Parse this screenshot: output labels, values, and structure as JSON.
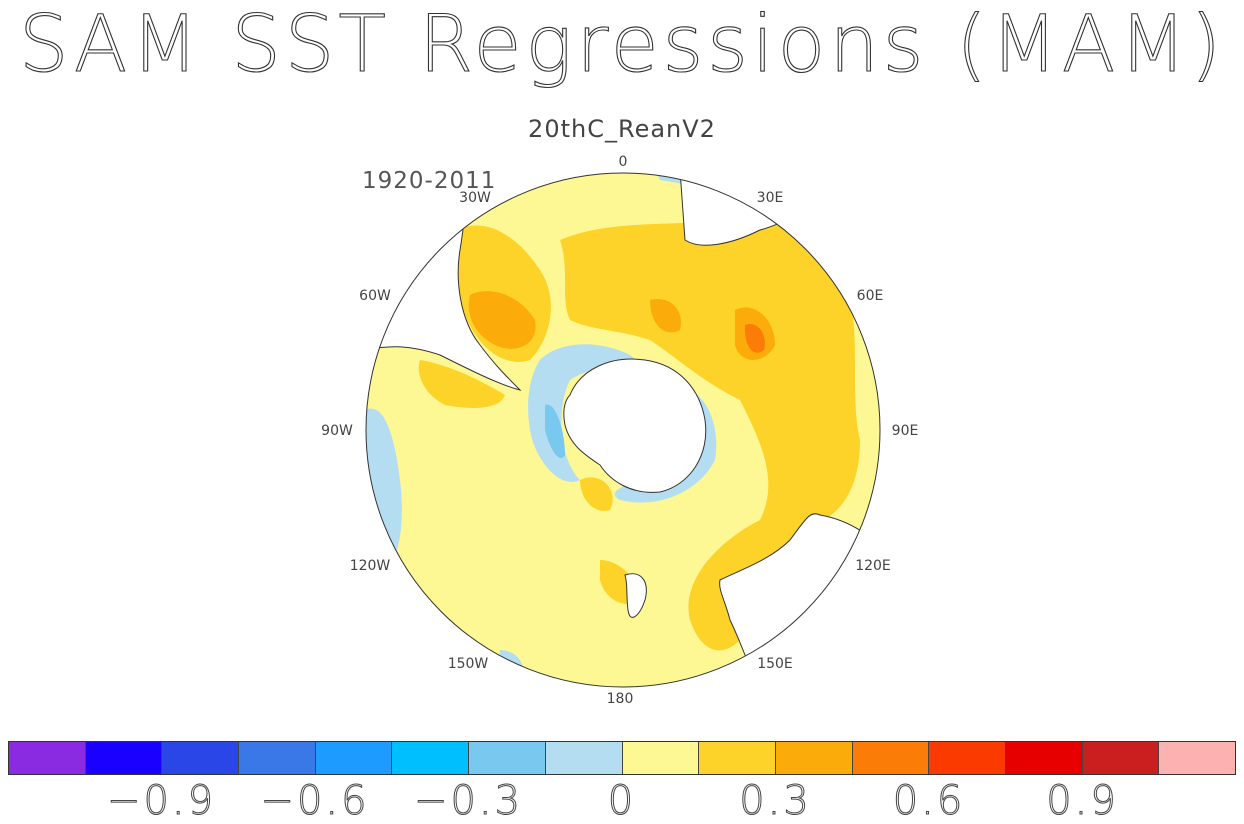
{
  "title": "SAM SST Regressions (MAM)",
  "subtitle": "20thC_ReanV2",
  "period": "1920-2011",
  "longitude_labels": [
    "0",
    "30E",
    "60E",
    "90E",
    "120E",
    "150E",
    "180",
    "150W",
    "120W",
    "90W",
    "60W",
    "30W"
  ],
  "colorbar": {
    "colors": [
      "#8a2be2",
      "#1a00ff",
      "#2a46e6",
      "#3a78e8",
      "#1e9bff",
      "#00bfff",
      "#78c8f0",
      "#b4ddf2",
      "#fef894",
      "#fdd32a",
      "#fbac0a",
      "#fb7c06",
      "#fb3a00",
      "#e60000",
      "#cb1e1e",
      "#fdb2b2"
    ],
    "tick_labels": [
      "−0.9",
      "−0.6",
      "−0.3",
      "0",
      "0.3",
      "0.6",
      "0.9"
    ],
    "tick_values": [
      -0.9,
      -0.6,
      -0.3,
      0,
      0.3,
      0.6,
      0.9
    ]
  }
}
